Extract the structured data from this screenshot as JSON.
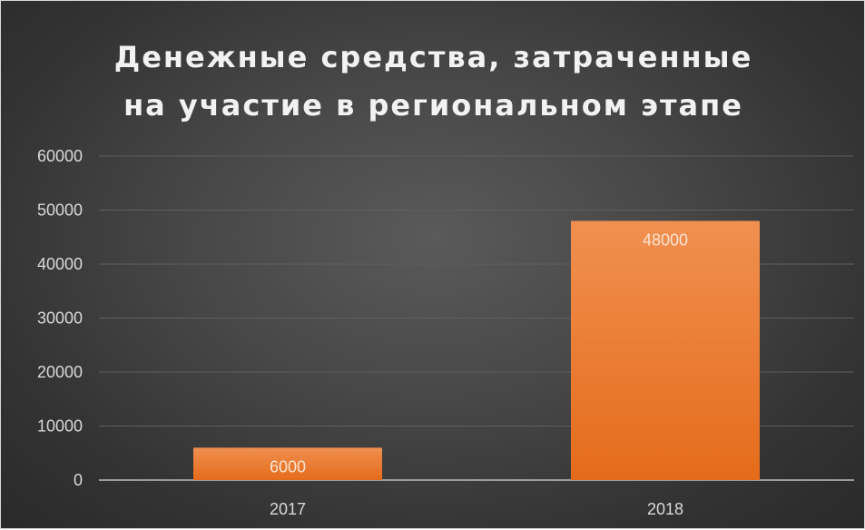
{
  "chart_data": {
    "type": "bar",
    "title_lines": [
      "Денежные средства, затраченные",
      "на участие в региональном этапе"
    ],
    "categories": [
      "2017",
      "2018"
    ],
    "values": [
      6000,
      48000
    ],
    "data_labels": [
      "6000",
      "48000"
    ],
    "yticks": [
      0,
      10000,
      20000,
      30000,
      40000,
      50000,
      60000
    ],
    "ylim": [
      0,
      60000
    ],
    "xlabel": "",
    "ylabel": "",
    "grid": true,
    "legend": "none",
    "colors": {
      "bar_top": "#f09050",
      "bar_bottom": "#e56b1b",
      "gridline": "#5e5e5e",
      "axis": "#bfbfbf"
    }
  }
}
